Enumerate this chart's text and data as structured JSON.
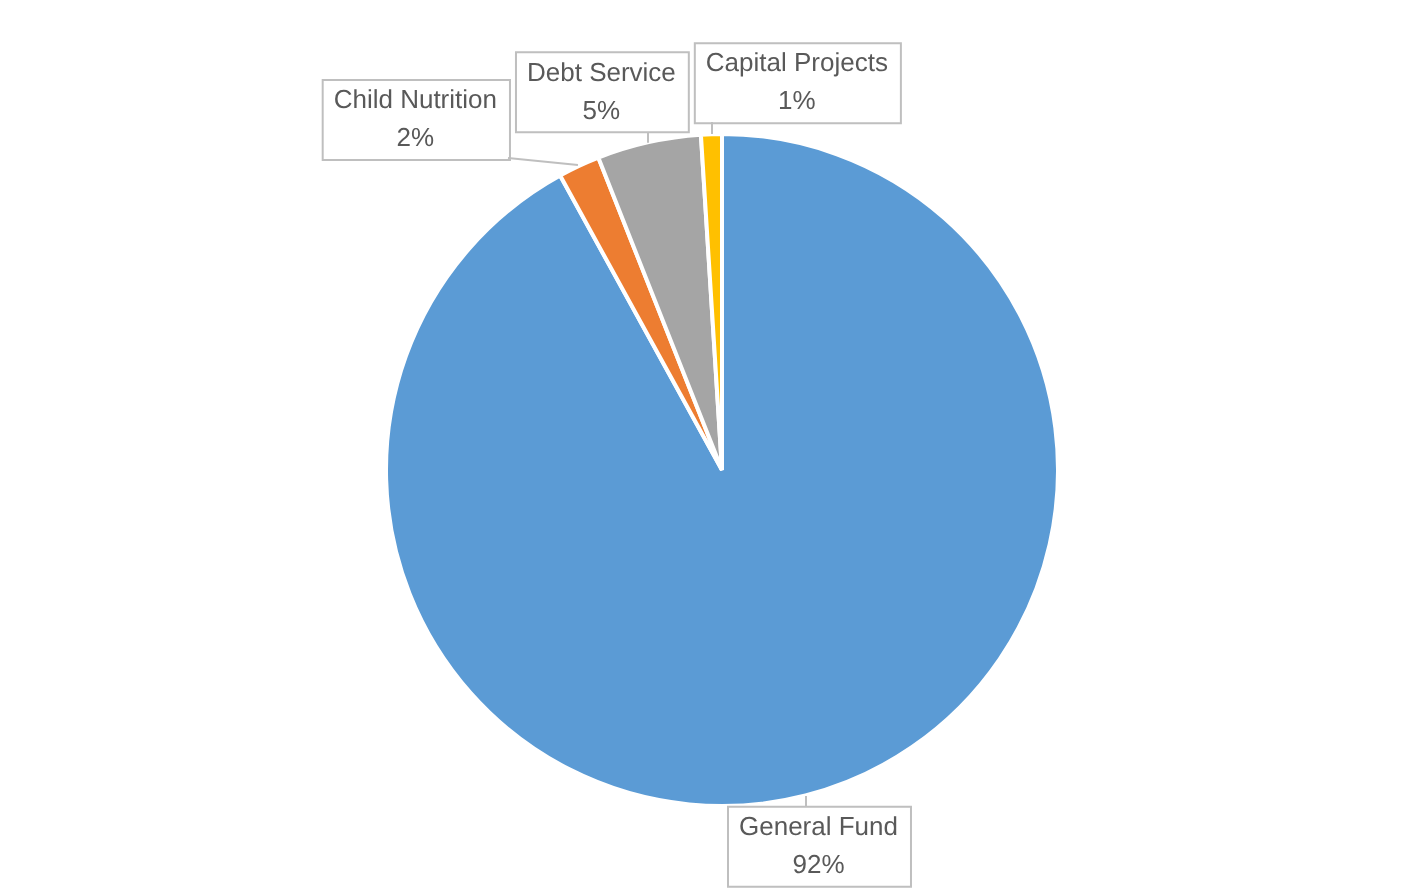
{
  "chart_data": {
    "type": "pie",
    "categories": [
      "General Fund",
      "Child Nutrition",
      "Debt Service",
      "Capital Projects"
    ],
    "values": [
      92,
      2,
      5,
      1
    ],
    "colors": [
      "#5b9bd5",
      "#ed7d31",
      "#a5a5a5",
      "#ffc000"
    ],
    "value_labels": [
      "92%",
      "2%",
      "5%",
      "1%"
    ],
    "legend": false
  }
}
